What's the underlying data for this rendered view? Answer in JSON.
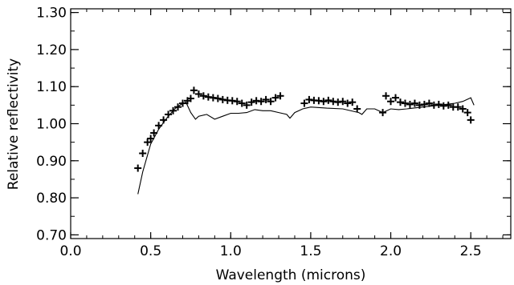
{
  "chart_data": {
    "type": "scatter",
    "title": "",
    "xlabel": "Wavelength (microns)",
    "ylabel": "Relative reflectivity",
    "xlim": [
      0.0,
      2.75
    ],
    "ylim": [
      0.69,
      1.31
    ],
    "xticks": [
      0.0,
      0.5,
      1.0,
      1.5,
      2.0,
      2.5
    ],
    "xtick_labels": [
      "0.0",
      "0.5",
      "1.0",
      "1.5",
      "2.0",
      "2.5"
    ],
    "yticks": [
      0.7,
      0.8,
      0.9,
      1.0,
      1.1,
      1.2,
      1.3
    ],
    "ytick_labels": [
      "0.70",
      "0.80",
      "0.90",
      "1.00",
      "1.10",
      "1.20",
      "1.30"
    ],
    "grid": false,
    "legend": "none",
    "series": [
      {
        "kind": "points",
        "marker": "plus",
        "points": [
          [
            0.42,
            0.88
          ],
          [
            0.45,
            0.92
          ],
          [
            0.48,
            0.95
          ],
          [
            0.5,
            0.96
          ],
          [
            0.52,
            0.975
          ],
          [
            0.55,
            0.995
          ],
          [
            0.58,
            1.01
          ],
          [
            0.61,
            1.025
          ],
          [
            0.64,
            1.035
          ],
          [
            0.67,
            1.045
          ],
          [
            0.7,
            1.055
          ],
          [
            0.73,
            1.062
          ],
          [
            0.75,
            1.068
          ],
          [
            0.77,
            1.09
          ],
          [
            0.8,
            1.08
          ],
          [
            0.83,
            1.075
          ],
          [
            0.86,
            1.072
          ],
          [
            0.89,
            1.07
          ],
          [
            0.92,
            1.068
          ],
          [
            0.95,
            1.065
          ],
          [
            0.98,
            1.063
          ],
          [
            1.01,
            1.062
          ],
          [
            1.04,
            1.06
          ],
          [
            1.07,
            1.055
          ],
          [
            1.1,
            1.05
          ],
          [
            1.13,
            1.058
          ],
          [
            1.16,
            1.062
          ],
          [
            1.19,
            1.06
          ],
          [
            1.22,
            1.065
          ],
          [
            1.25,
            1.06
          ],
          [
            1.28,
            1.07
          ],
          [
            1.31,
            1.075
          ],
          [
            1.46,
            1.055
          ],
          [
            1.49,
            1.065
          ],
          [
            1.52,
            1.063
          ],
          [
            1.55,
            1.062
          ],
          [
            1.58,
            1.06
          ],
          [
            1.61,
            1.063
          ],
          [
            1.64,
            1.06
          ],
          [
            1.67,
            1.058
          ],
          [
            1.7,
            1.06
          ],
          [
            1.73,
            1.055
          ],
          [
            1.76,
            1.058
          ],
          [
            1.79,
            1.04
          ],
          [
            1.95,
            1.03
          ],
          [
            1.97,
            1.075
          ],
          [
            2.0,
            1.06
          ],
          [
            2.03,
            1.07
          ],
          [
            2.06,
            1.058
          ],
          [
            2.09,
            1.055
          ],
          [
            2.12,
            1.052
          ],
          [
            2.15,
            1.055
          ],
          [
            2.18,
            1.05
          ],
          [
            2.21,
            1.052
          ],
          [
            2.24,
            1.055
          ],
          [
            2.27,
            1.05
          ],
          [
            2.3,
            1.052
          ],
          [
            2.33,
            1.048
          ],
          [
            2.36,
            1.05
          ],
          [
            2.39,
            1.045
          ],
          [
            2.42,
            1.045
          ],
          [
            2.45,
            1.04
          ],
          [
            2.48,
            1.03
          ],
          [
            2.5,
            1.01
          ]
        ]
      },
      {
        "kind": "line",
        "points": [
          [
            0.42,
            0.81
          ],
          [
            0.45,
            0.87
          ],
          [
            0.5,
            0.945
          ],
          [
            0.55,
            0.985
          ],
          [
            0.6,
            1.015
          ],
          [
            0.65,
            1.04
          ],
          [
            0.7,
            1.055
          ],
          [
            0.72,
            1.058
          ],
          [
            0.75,
            1.03
          ],
          [
            0.78,
            1.012
          ],
          [
            0.8,
            1.02
          ],
          [
            0.85,
            1.025
          ],
          [
            0.9,
            1.012
          ],
          [
            0.95,
            1.02
          ],
          [
            1.0,
            1.028
          ],
          [
            1.05,
            1.028
          ],
          [
            1.1,
            1.03
          ],
          [
            1.15,
            1.038
          ],
          [
            1.2,
            1.035
          ],
          [
            1.25,
            1.035
          ],
          [
            1.3,
            1.03
          ],
          [
            1.35,
            1.025
          ],
          [
            1.37,
            1.015
          ],
          [
            1.4,
            1.03
          ],
          [
            1.45,
            1.04
          ],
          [
            1.5,
            1.045
          ],
          [
            1.6,
            1.042
          ],
          [
            1.7,
            1.04
          ],
          [
            1.8,
            1.03
          ],
          [
            1.82,
            1.025
          ],
          [
            1.85,
            1.04
          ],
          [
            1.9,
            1.04
          ],
          [
            1.95,
            1.03
          ],
          [
            2.0,
            1.04
          ],
          [
            2.05,
            1.038
          ],
          [
            2.1,
            1.04
          ],
          [
            2.2,
            1.045
          ],
          [
            2.3,
            1.05
          ],
          [
            2.4,
            1.055
          ],
          [
            2.45,
            1.06
          ],
          [
            2.5,
            1.07
          ],
          [
            2.52,
            1.05
          ]
        ]
      }
    ]
  }
}
